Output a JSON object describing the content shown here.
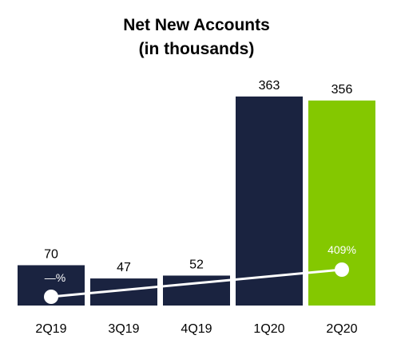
{
  "chart_data": {
    "type": "bar",
    "title": [
      "Net New Accounts",
      "(in thousands)"
    ],
    "categories": [
      "2Q19",
      "3Q19",
      "4Q19",
      "1Q20",
      "2Q20"
    ],
    "values": [
      70,
      47,
      52,
      363,
      356
    ],
    "value_labels": [
      "70",
      "47",
      "52",
      "363",
      "356"
    ],
    "ylim": [
      0,
      400
    ],
    "grid": false,
    "legend": "none",
    "bar_colors": [
      "#1a2340",
      "#1a2340",
      "#1a2340",
      "#1a2340",
      "#84c800"
    ],
    "growth_line": {
      "from_label": "—%",
      "to_label": "409%",
      "from_index": 0,
      "to_index": 4,
      "color": "#ffffff"
    }
  }
}
